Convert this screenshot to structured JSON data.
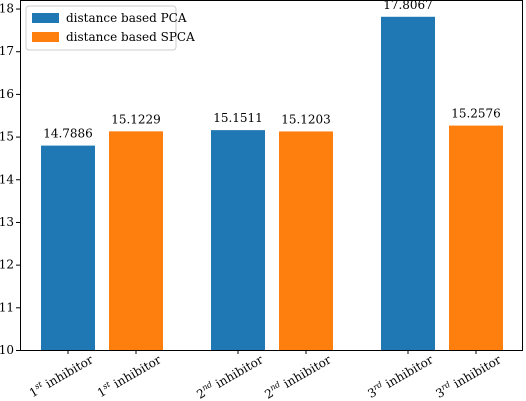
{
  "chart_data": {
    "type": "bar",
    "categories": [
      {
        "num": "1",
        "sup": "st",
        "text": " inhibitor"
      },
      {
        "num": "1",
        "sup": "st",
        "text": " inhibitor"
      },
      {
        "num": "2",
        "sup": "nd",
        "text": " inhibitor"
      },
      {
        "num": "2",
        "sup": "nd",
        "text": " inhibitor"
      },
      {
        "num": "3",
        "sup": "rd",
        "text": " inhibitor"
      },
      {
        "num": "3",
        "sup": "rd",
        "text": " inhibitor"
      }
    ],
    "bars": [
      {
        "series": 0,
        "value": 14.7886,
        "label": "14.7886"
      },
      {
        "series": 1,
        "value": 15.1229,
        "label": "15.1229"
      },
      {
        "series": 0,
        "value": 15.1511,
        "label": "15.1511"
      },
      {
        "series": 1,
        "value": 15.1203,
        "label": "15.1203"
      },
      {
        "series": 0,
        "value": 17.8067,
        "label": "17.8067"
      },
      {
        "series": 1,
        "value": 15.2576,
        "label": "15.2576"
      }
    ],
    "series": [
      {
        "name": "distance based PCA",
        "color": "#1f77b4"
      },
      {
        "name": "distance based SPCA",
        "color": "#ff7f0e"
      }
    ],
    "yticks": [
      "10",
      "11",
      "12",
      "13",
      "14",
      "15",
      "16",
      "17",
      "18"
    ],
    "ylim": [
      10,
      18.2
    ],
    "title": "",
    "xlabel": "",
    "ylabel": "",
    "legend_position": "top-left",
    "grid": false
  }
}
